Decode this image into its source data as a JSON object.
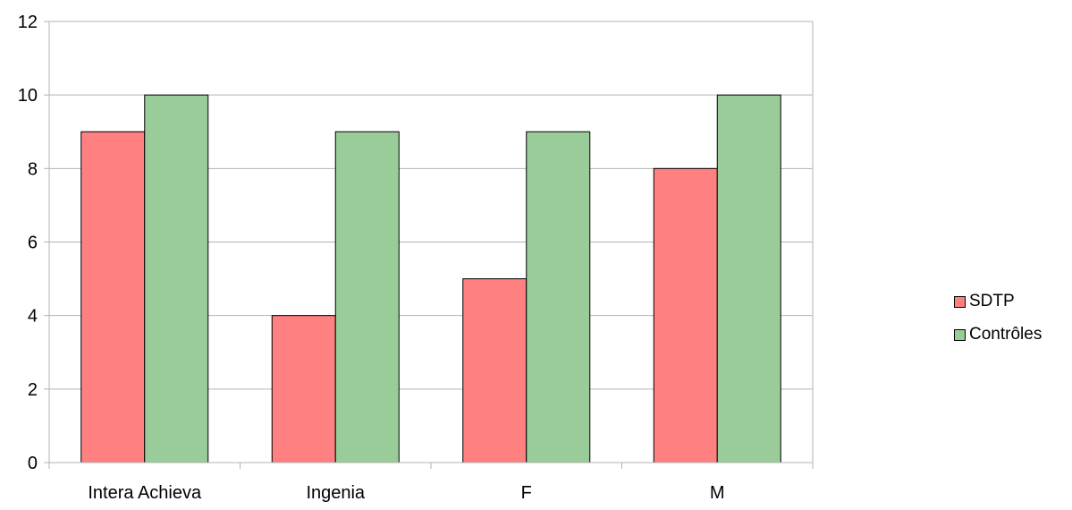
{
  "chart_data": {
    "type": "bar",
    "title": "",
    "xlabel": "",
    "ylabel": "",
    "categories": [
      "Intera Achieva",
      "Ingenia",
      "F",
      "M"
    ],
    "series": [
      {
        "name": "SDTP",
        "values": [
          9,
          4,
          5,
          8
        ],
        "color": "#ff8080"
      },
      {
        "name": "Contrôles",
        "values": [
          10,
          9,
          9,
          10
        ],
        "color": "#99cc99"
      }
    ],
    "ylim": [
      0,
      12
    ],
    "yticks": [
      0,
      2,
      4,
      6,
      8,
      10,
      12
    ],
    "grid": true,
    "legend_position": "right"
  }
}
